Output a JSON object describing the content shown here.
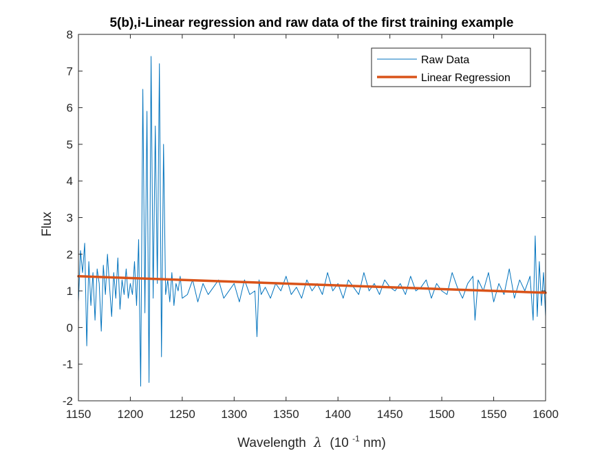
{
  "chart_data": {
    "type": "line",
    "title": "5(b),i-Linear regression and raw data of the first training example",
    "xlabel_prefix": "Wavelength",
    "xlabel_symbol": "λ",
    "xlabel_unit_open": "(10",
    "xlabel_unit_exp": "-1",
    "xlabel_unit_close": " nm)",
    "ylabel": "Flux",
    "xlim": [
      1150,
      1600
    ],
    "ylim": [
      -2,
      8
    ],
    "xticks": [
      "1150",
      "1200",
      "1250",
      "1300",
      "1350",
      "1400",
      "1450",
      "1500",
      "1550",
      "1600"
    ],
    "yticks": [
      "-2",
      "-1",
      "0",
      "1",
      "2",
      "3",
      "4",
      "5",
      "6",
      "7",
      "8"
    ],
    "grid": false,
    "legend_position": "top-right",
    "series": [
      {
        "name": "Raw Data",
        "color": "#0072BD",
        "x": [
          1150,
          1152,
          1154,
          1156,
          1158,
          1160,
          1162,
          1164,
          1166,
          1168,
          1170,
          1172,
          1174,
          1176,
          1178,
          1180,
          1182,
          1184,
          1186,
          1188,
          1190,
          1192,
          1194,
          1196,
          1198,
          1200,
          1202,
          1204,
          1206,
          1208,
          1210,
          1212,
          1214,
          1216,
          1218,
          1220,
          1222,
          1224,
          1226,
          1228,
          1230,
          1232,
          1234,
          1236,
          1238,
          1240,
          1242,
          1244,
          1246,
          1248,
          1250,
          1255,
          1260,
          1265,
          1270,
          1275,
          1280,
          1285,
          1290,
          1295,
          1300,
          1305,
          1310,
          1315,
          1320,
          1322,
          1324,
          1326,
          1330,
          1335,
          1340,
          1345,
          1350,
          1355,
          1360,
          1365,
          1370,
          1375,
          1380,
          1385,
          1390,
          1395,
          1400,
          1405,
          1410,
          1415,
          1420,
          1425,
          1430,
          1435,
          1440,
          1445,
          1450,
          1455,
          1460,
          1465,
          1470,
          1475,
          1480,
          1485,
          1490,
          1495,
          1500,
          1505,
          1510,
          1515,
          1520,
          1525,
          1530,
          1532,
          1535,
          1540,
          1545,
          1550,
          1555,
          1560,
          1565,
          1570,
          1575,
          1580,
          1585,
          1588,
          1590,
          1592,
          1594,
          1596,
          1598,
          1600
        ],
        "y": [
          0.7,
          2.1,
          1.5,
          2.3,
          -0.5,
          1.8,
          0.6,
          1.5,
          0.2,
          1.6,
          1.2,
          -0.1,
          1.7,
          0.9,
          2.0,
          1.1,
          0.3,
          1.5,
          0.8,
          1.9,
          0.5,
          1.3,
          0.9,
          1.6,
          0.8,
          1.2,
          0.9,
          1.8,
          0.6,
          2.4,
          -1.6,
          6.5,
          0.4,
          5.9,
          -1.5,
          7.4,
          0.8,
          5.5,
          1.2,
          7.2,
          -0.8,
          5.0,
          0.9,
          1.3,
          0.7,
          1.5,
          0.6,
          1.2,
          1.0,
          1.4,
          0.8,
          0.9,
          1.3,
          0.7,
          1.2,
          0.9,
          1.1,
          1.3,
          0.8,
          1.0,
          1.2,
          0.7,
          1.3,
          0.9,
          1.0,
          -0.25,
          1.3,
          0.9,
          1.1,
          0.8,
          1.2,
          1.0,
          1.4,
          0.9,
          1.1,
          0.8,
          1.3,
          1.0,
          1.2,
          0.9,
          1.5,
          1.0,
          1.2,
          0.8,
          1.3,
          1.1,
          0.9,
          1.5,
          1.0,
          1.2,
          0.9,
          1.3,
          1.1,
          1.0,
          1.2,
          0.9,
          1.4,
          1.0,
          1.1,
          1.3,
          0.8,
          1.2,
          1.0,
          0.9,
          1.5,
          1.1,
          0.8,
          1.2,
          1.4,
          0.2,
          1.3,
          1.0,
          1.5,
          0.7,
          1.2,
          0.9,
          1.6,
          0.8,
          1.3,
          1.0,
          1.4,
          0.2,
          2.5,
          0.3,
          1.8,
          0.6,
          1.5,
          0.3
        ]
      },
      {
        "name": "Linear Regression",
        "color": "#D95319",
        "x": [
          1150,
          1600
        ],
        "y": [
          1.4,
          0.95
        ]
      }
    ]
  }
}
